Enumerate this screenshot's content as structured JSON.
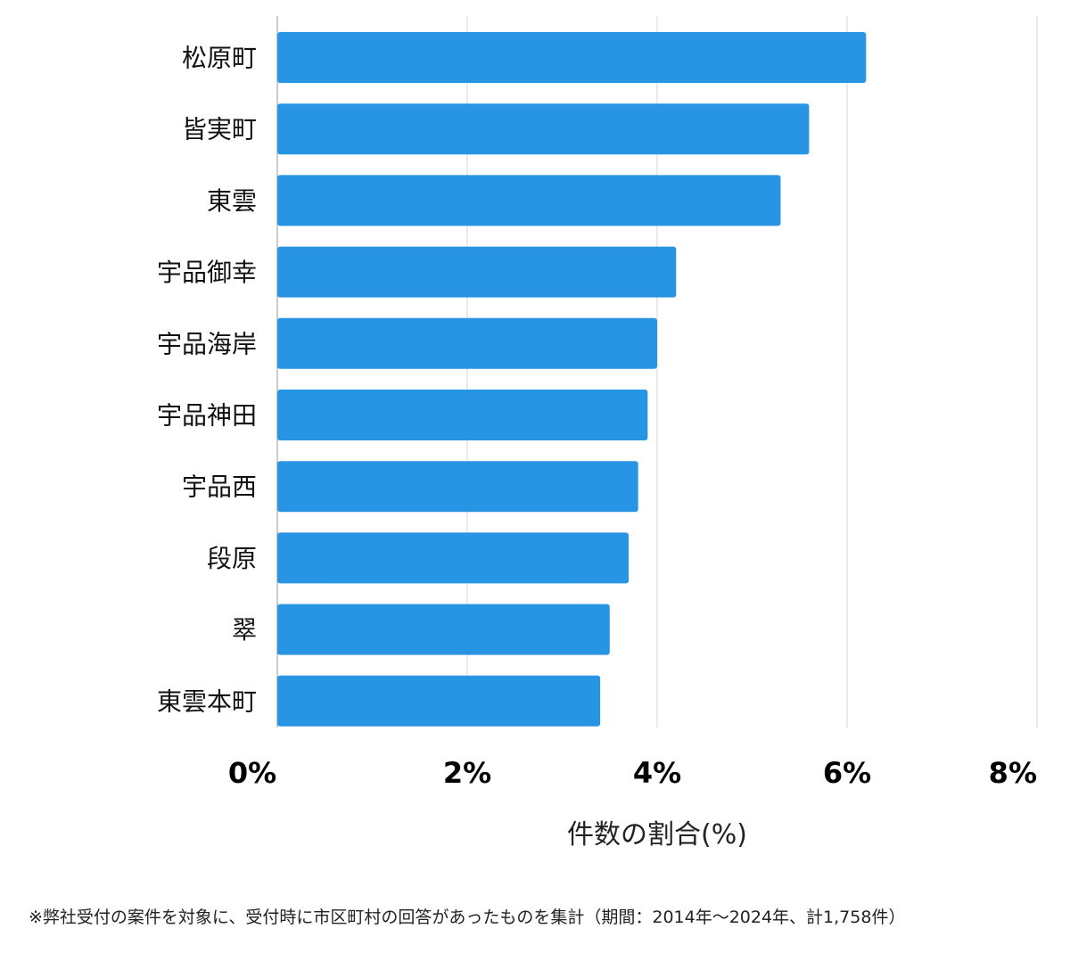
{
  "chart_data": {
    "type": "bar",
    "orientation": "horizontal",
    "categories": [
      "松原町",
      "皆実町",
      "東雲",
      "宇品御幸",
      "宇品海岸",
      "宇品神田",
      "宇品西",
      "段原",
      "翠",
      "東雲本町"
    ],
    "values": [
      6.2,
      5.6,
      5.3,
      4.2,
      4.0,
      3.9,
      3.8,
      3.7,
      3.5,
      3.4
    ],
    "xlim": [
      0,
      8
    ],
    "xticks": [
      0,
      2,
      4,
      6,
      8
    ],
    "xtick_labels": [
      "0%",
      "2%",
      "4%",
      "6%",
      "8%"
    ],
    "xlabel": "件数の割合(%)",
    "grid": "vertical",
    "bar_color": "#2794E4",
    "grid_color": "#dddddd",
    "legend": "none"
  },
  "footnote": "※弊社受付の案件を対象に、受付時に市区町村の回答があったものを集計（期間：2014年～2024年、計1,758件）"
}
